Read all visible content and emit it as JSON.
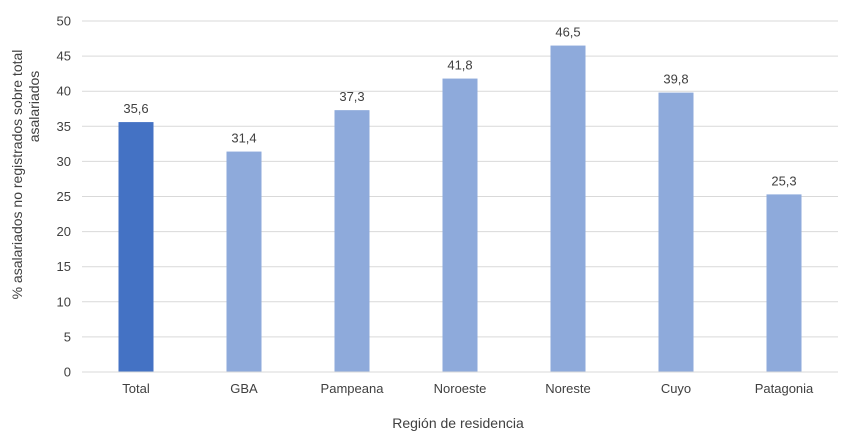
{
  "chart_data": {
    "type": "bar",
    "categories": [
      "Total",
      "GBA",
      "Pampeana",
      "Noroeste",
      "Noreste",
      "Cuyo",
      "Patagonia"
    ],
    "values": [
      35.6,
      31.4,
      37.3,
      41.8,
      46.5,
      39.8,
      25.3
    ],
    "value_labels": [
      "35,6",
      "31,4",
      "37,3",
      "41,8",
      "46,5",
      "39,8",
      "25,3"
    ],
    "xlabel": "Región  de residencia",
    "ylabel_line1": "% asalariados no registrados sobre total",
    "ylabel_line2": "asalariados",
    "ylim": [
      0,
      50
    ],
    "yticks": [
      0,
      5,
      10,
      15,
      20,
      25,
      30,
      35,
      40,
      45,
      50
    ],
    "grid": true,
    "colors": {
      "highlight": "#4472C4",
      "default": "#8EAADB",
      "grid": "#D9D9D9",
      "text": "#404040"
    }
  }
}
